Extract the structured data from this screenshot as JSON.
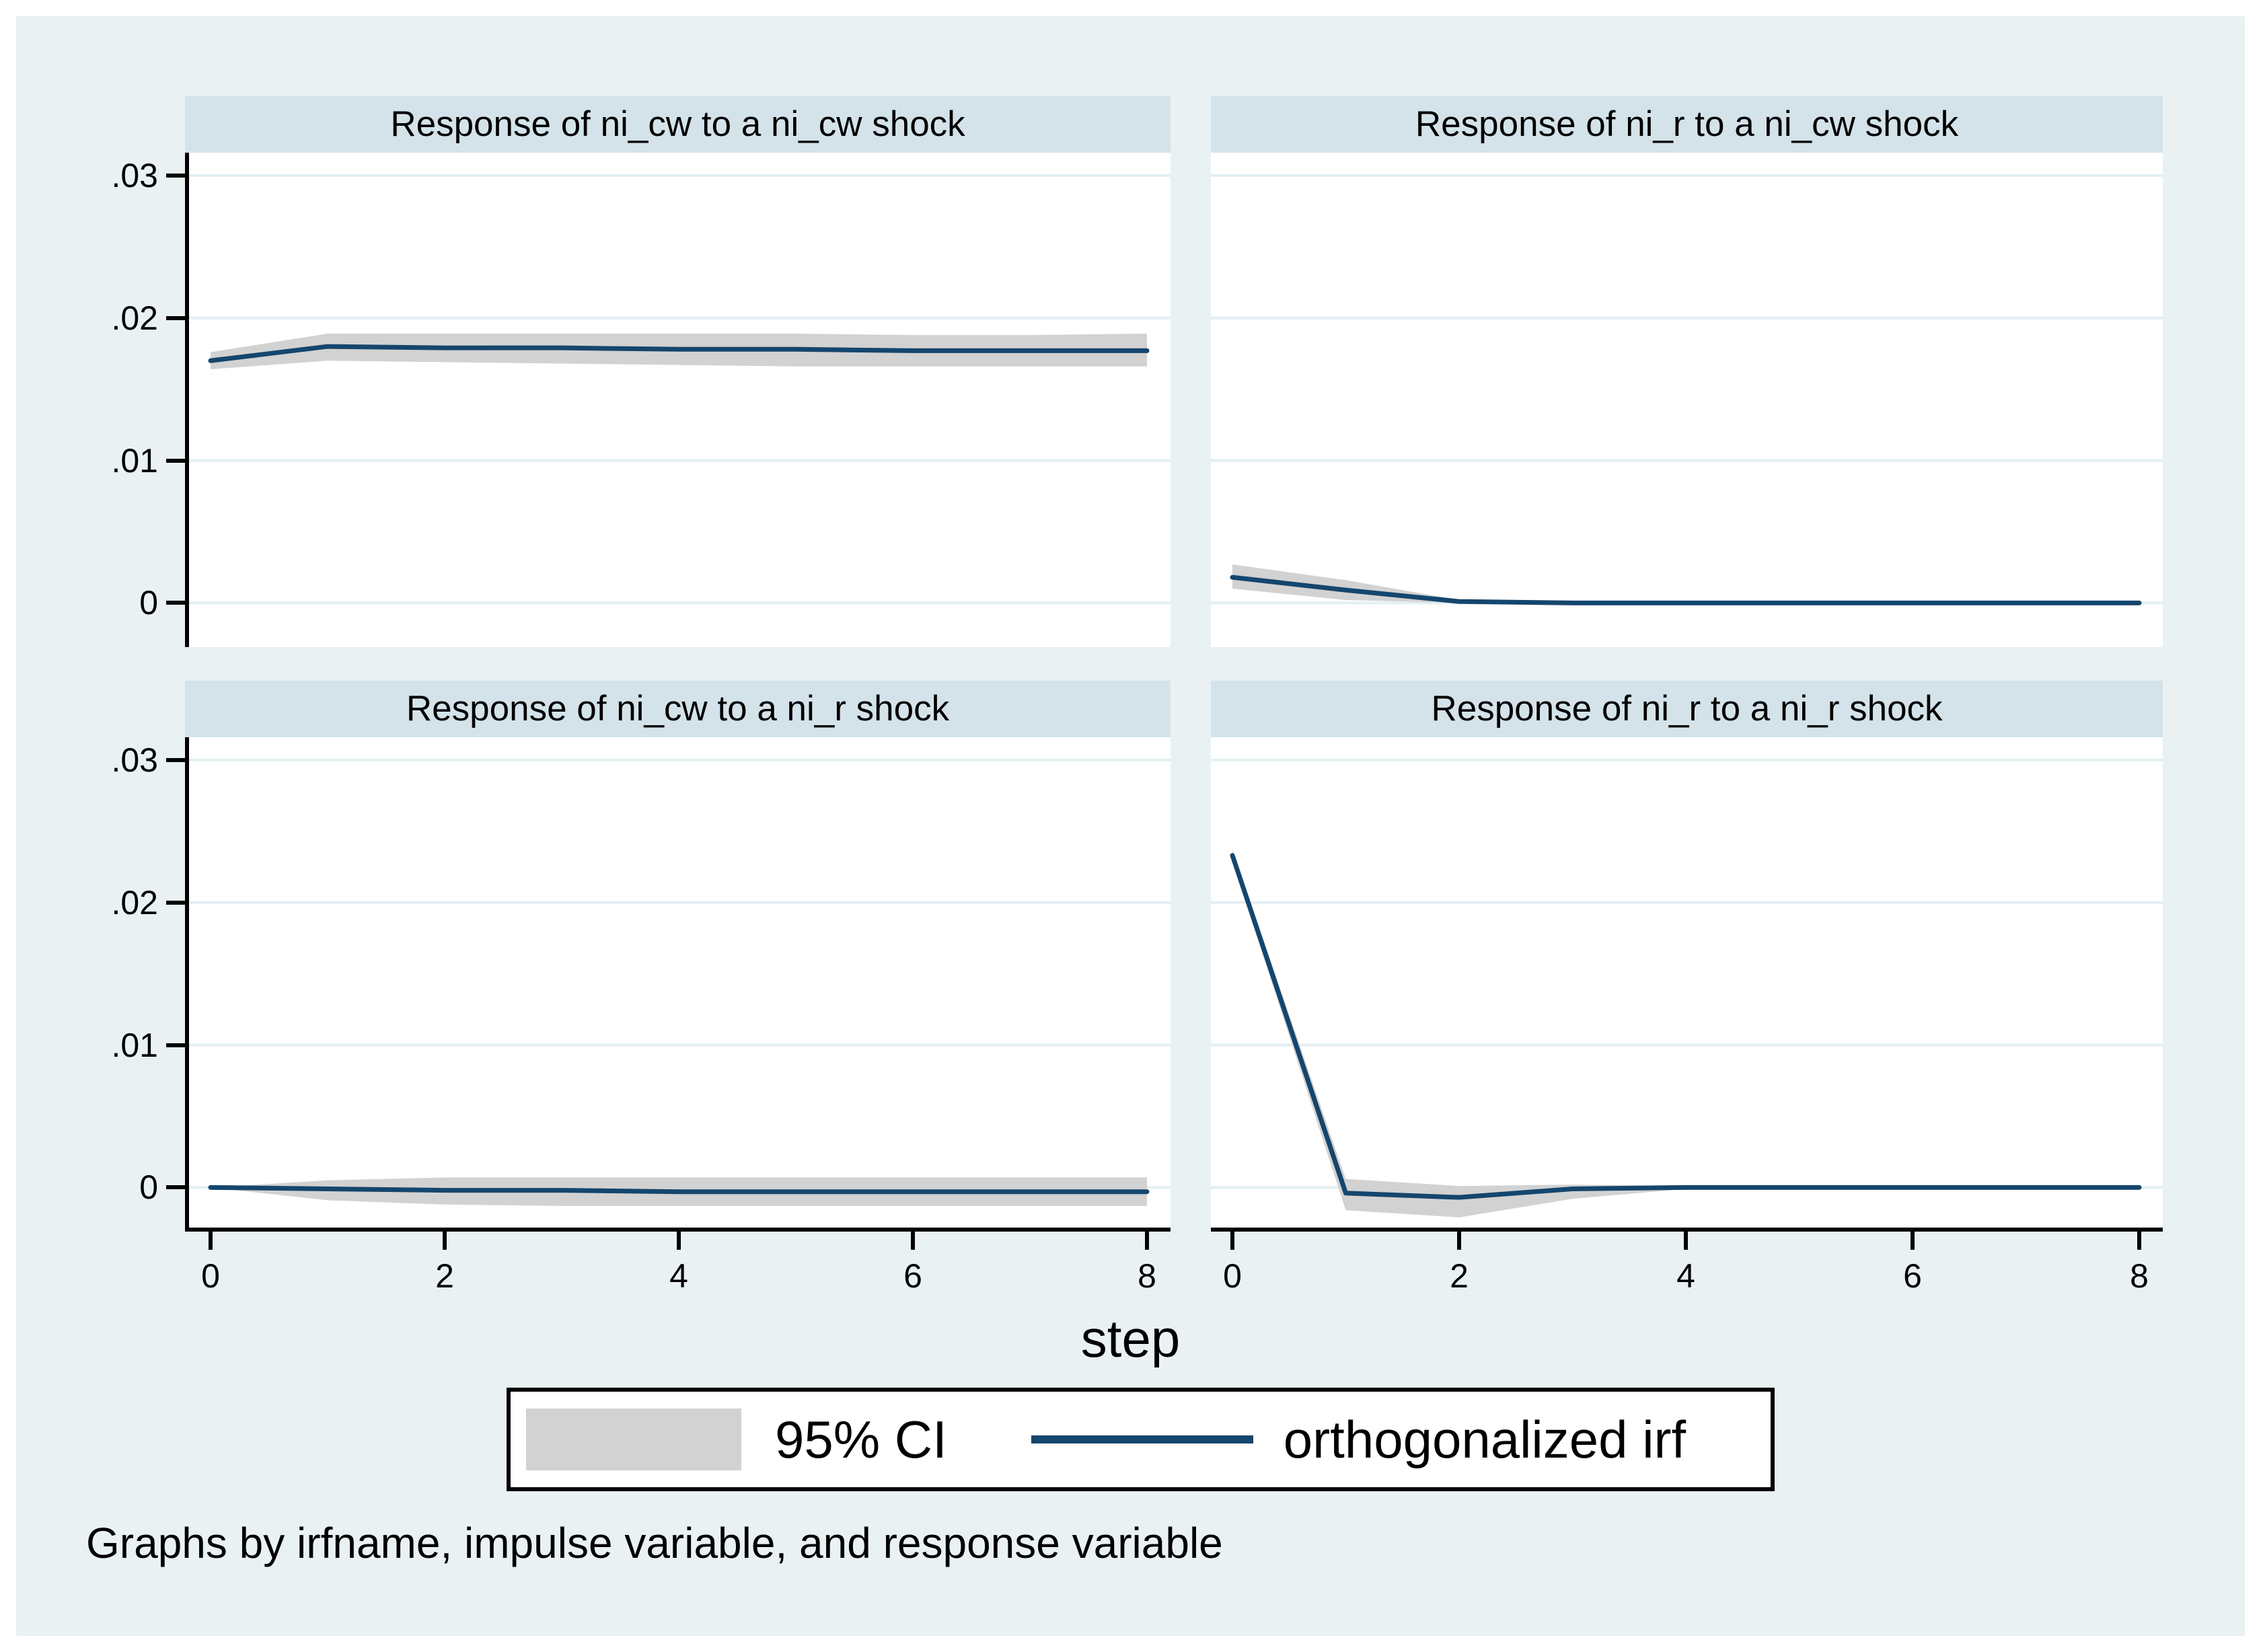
{
  "figure": {
    "xlabel": "step",
    "note": "Graphs by irfname, impulse variable, and response variable",
    "legend": {
      "ci_label": "95% CI",
      "irf_label": "orthogonalized irf"
    },
    "colors": {
      "background": "#e9f1f3",
      "panel_title_band": "#d4e3ea",
      "plot_background": "#ffffff",
      "gridline": "#e3eff2",
      "axis": "#000000",
      "ci_band": "#d2d2d2",
      "irf_line": "#14466e"
    }
  },
  "chart_data": [
    {
      "type": "line",
      "title": "Response of ni_cw to a ni_cw shock",
      "x": [
        0,
        1,
        2,
        3,
        4,
        5,
        6,
        7,
        8
      ],
      "series": [
        {
          "name": "orthogonalized irf",
          "values": [
            0.017,
            0.018,
            0.0179,
            0.0179,
            0.0178,
            0.0178,
            0.0177,
            0.0177,
            0.0177
          ]
        },
        {
          "name": "95% CI lower",
          "values": [
            0.0164,
            0.017,
            0.0169,
            0.0168,
            0.0167,
            0.0166,
            0.0166,
            0.0166,
            0.0166
          ]
        },
        {
          "name": "95% CI upper",
          "values": [
            0.0176,
            0.0189,
            0.0189,
            0.0189,
            0.0189,
            0.0189,
            0.0188,
            0.0188,
            0.0189
          ]
        }
      ],
      "xlim": [
        0,
        8
      ],
      "ylim": [
        -0.0031,
        0.0316
      ],
      "xticks": [
        0,
        2,
        4,
        6,
        8
      ],
      "yticks": [
        0,
        0.01,
        0.02,
        0.03
      ],
      "ytick_labels": [
        "0",
        ".01",
        ".02",
        ".03"
      ],
      "xtick_labels": [
        "0",
        "2",
        "4",
        "6",
        "8"
      ],
      "grid": true,
      "legend_position": "bottom"
    },
    {
      "type": "line",
      "title": "Response of ni_r to a ni_cw shock",
      "x": [
        0,
        1,
        2,
        3,
        4,
        5,
        6,
        7,
        8
      ],
      "series": [
        {
          "name": "orthogonalized irf",
          "values": [
            0.0018,
            0.0009,
            0.0001,
            0.0,
            0,
            0,
            0,
            0,
            0
          ]
        },
        {
          "name": "95% CI lower",
          "values": [
            0.001,
            0.0002,
            0.0,
            0,
            0,
            0,
            0,
            0,
            0
          ]
        },
        {
          "name": "95% CI upper",
          "values": [
            0.0027,
            0.0016,
            0.0002,
            0.0001,
            0.0001,
            0.0001,
            0.0001,
            0.0001,
            0.0001
          ]
        }
      ],
      "xlim": [
        0,
        8
      ],
      "ylim": [
        -0.0031,
        0.0316
      ],
      "xticks": [
        0,
        2,
        4,
        6,
        8
      ],
      "yticks": [
        0,
        0.01,
        0.02,
        0.03
      ],
      "ytick_labels": [
        "0",
        ".01",
        ".02",
        ".03"
      ],
      "xtick_labels": [
        "0",
        "2",
        "4",
        "6",
        "8"
      ],
      "grid": true,
      "legend_position": "bottom"
    },
    {
      "type": "line",
      "title": "Response of ni_cw to a ni_r shock",
      "x": [
        0,
        1,
        2,
        3,
        4,
        5,
        6,
        7,
        8
      ],
      "series": [
        {
          "name": "orthogonalized irf",
          "values": [
            0,
            -0.0001,
            -0.0002,
            -0.0002,
            -0.0003,
            -0.0003,
            -0.0003,
            -0.0003,
            -0.0003
          ]
        },
        {
          "name": "95% CI lower",
          "values": [
            0,
            -0.0009,
            -0.0012,
            -0.0013,
            -0.0013,
            -0.0013,
            -0.0013,
            -0.0013,
            -0.0013
          ]
        },
        {
          "name": "95% CI upper",
          "values": [
            0,
            0.0005,
            0.0007,
            0.0007,
            0.0007,
            0.0007,
            0.0007,
            0.0007,
            0.0007
          ]
        }
      ],
      "xlim": [
        0,
        8
      ],
      "ylim": [
        -0.0031,
        0.0316
      ],
      "xticks": [
        0,
        2,
        4,
        6,
        8
      ],
      "yticks": [
        0,
        0.01,
        0.02,
        0.03
      ],
      "ytick_labels": [
        "0",
        ".01",
        ".02",
        ".03"
      ],
      "xtick_labels": [
        "0",
        "2",
        "4",
        "6",
        "8"
      ],
      "grid": true,
      "legend_position": "bottom"
    },
    {
      "type": "line",
      "title": "Response of ni_r to a ni_r shock",
      "x": [
        0,
        1,
        2,
        3,
        4,
        5,
        6,
        7,
        8
      ],
      "series": [
        {
          "name": "orthogonalized irf",
          "values": [
            0.0233,
            -0.0004,
            -0.0007,
            -0.0001,
            0,
            0,
            0,
            0,
            0
          ]
        },
        {
          "name": "95% CI lower",
          "values": [
            0.0229,
            -0.0016,
            -0.0021,
            -0.0008,
            -0.0001,
            0,
            0,
            0,
            0
          ]
        },
        {
          "name": "95% CI upper",
          "values": [
            0.0237,
            0.0006,
            0.0001,
            0.0002,
            0.0001,
            0,
            0,
            0,
            0
          ]
        }
      ],
      "xlim": [
        0,
        8
      ],
      "ylim": [
        -0.0031,
        0.0316
      ],
      "xticks": [
        0,
        2,
        4,
        6,
        8
      ],
      "yticks": [
        0,
        0.01,
        0.02,
        0.03
      ],
      "ytick_labels": [
        "0",
        ".01",
        ".02",
        ".03"
      ],
      "xtick_labels": [
        "0",
        "2",
        "4",
        "6",
        "8"
      ],
      "grid": true,
      "legend_position": "bottom"
    }
  ]
}
